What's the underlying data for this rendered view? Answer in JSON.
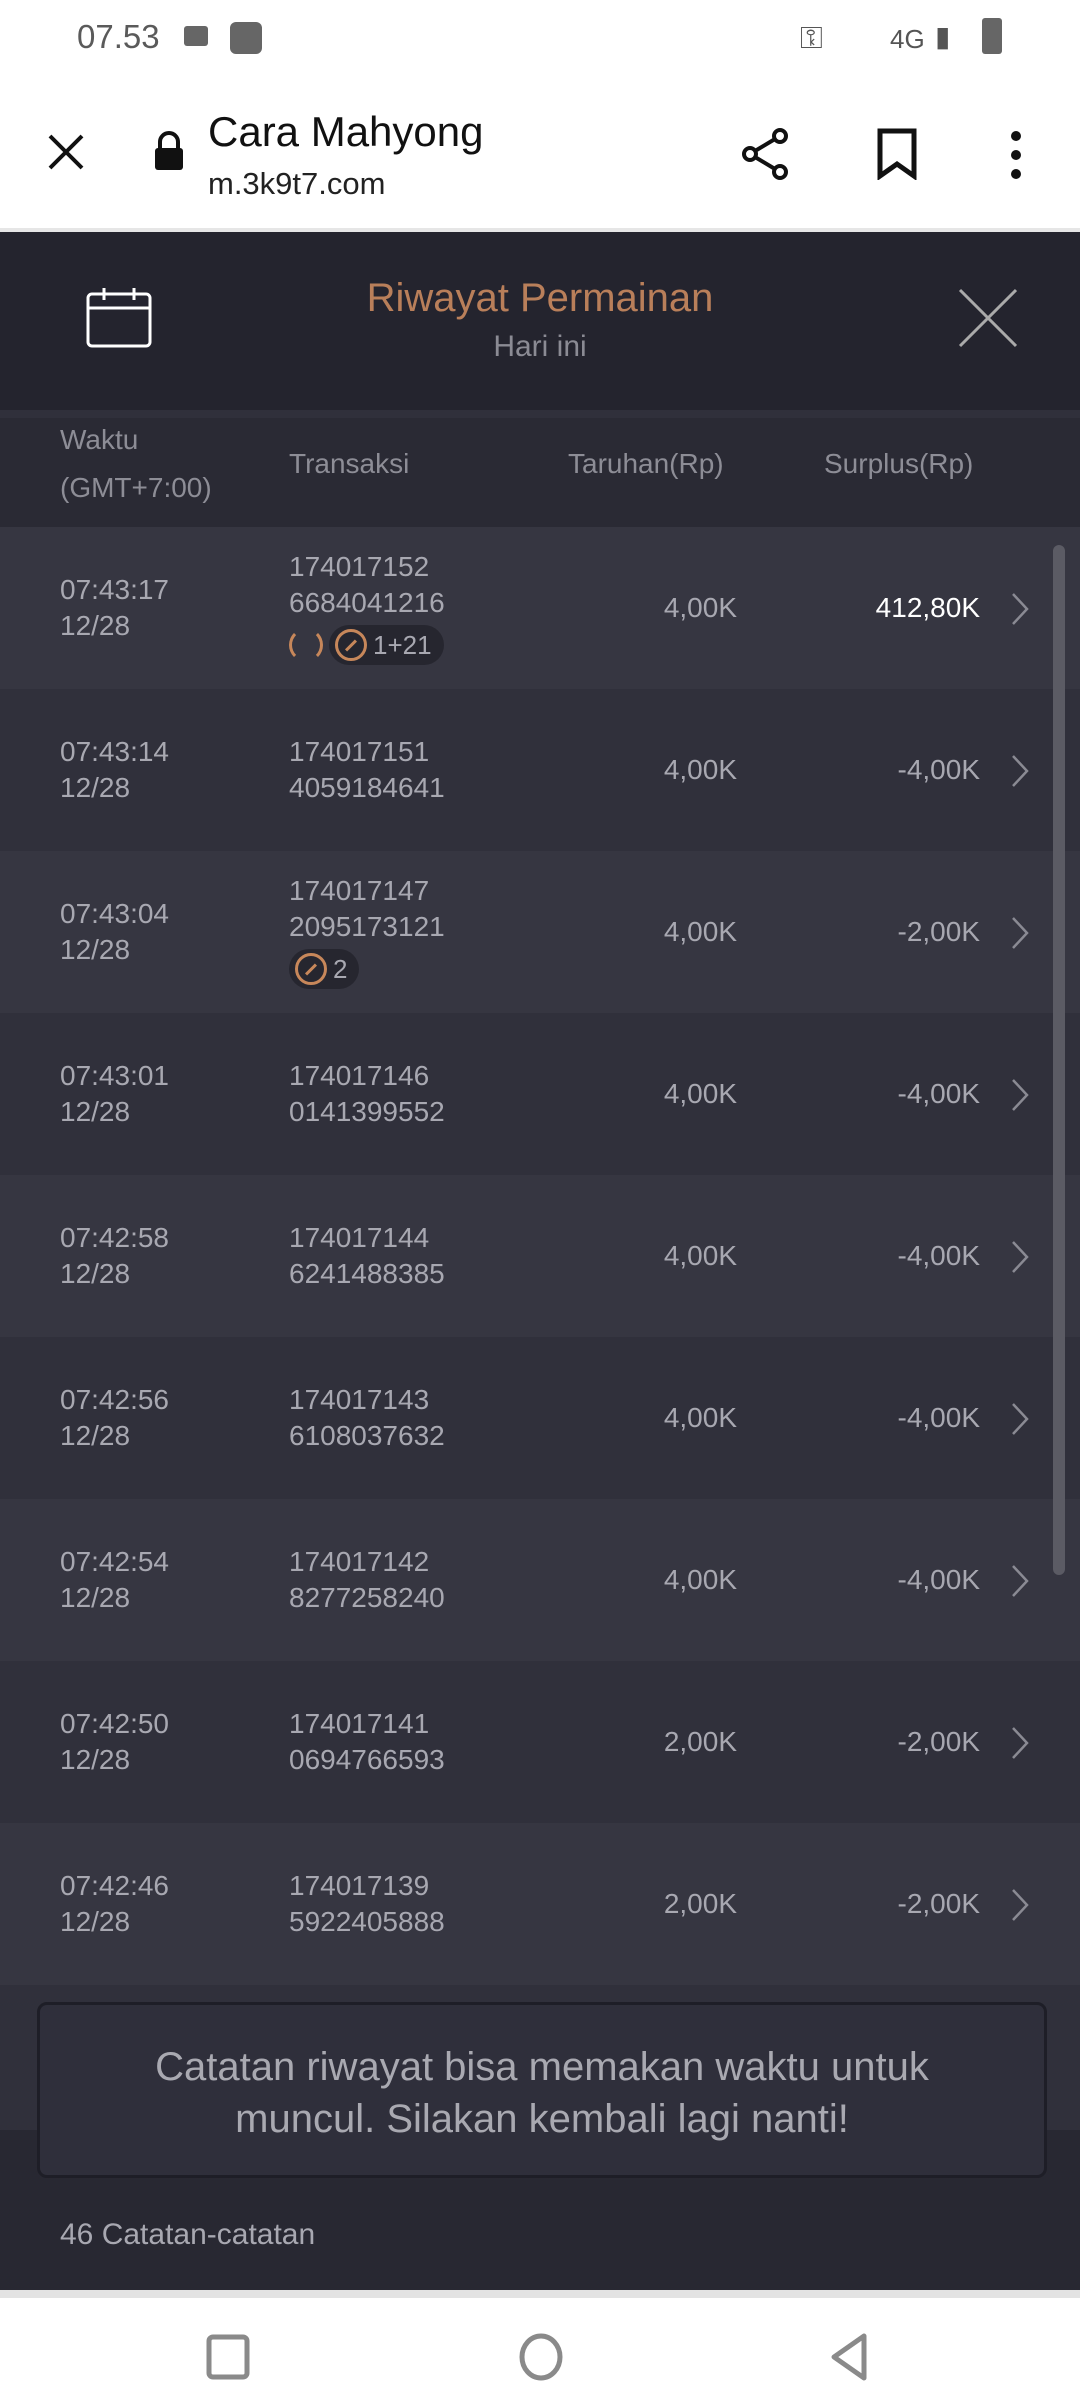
{
  "status_bar": {
    "time": "07.53",
    "network": "4G"
  },
  "browser": {
    "title": "Cara Mahyong",
    "url": "m.3k9t7.com"
  },
  "header": {
    "title": "Riwayat Permainan",
    "subtitle": "Hari ini",
    "accent": "#b97f5a"
  },
  "columns": {
    "time": "Waktu",
    "timezone": "(GMT+7:00)",
    "transaction": "Transaksi",
    "bet": "Taruhan(Rp)",
    "surplus": "Surplus(Rp)"
  },
  "rows": [
    {
      "time": "07:43:17",
      "date": "12/28",
      "tx1": "174017152",
      "tx2": "6684041216",
      "bet": "4,00K",
      "surplus": "412,80K",
      "badge": "1+21",
      "refresh": true,
      "win": true
    },
    {
      "time": "07:43:14",
      "date": "12/28",
      "tx1": "174017151",
      "tx2": "4059184641",
      "bet": "4,00K",
      "surplus": "-4,00K"
    },
    {
      "time": "07:43:04",
      "date": "12/28",
      "tx1": "174017147",
      "tx2": "2095173121",
      "bet": "4,00K",
      "surplus": "-2,00K",
      "badge": "2"
    },
    {
      "time": "07:43:01",
      "date": "12/28",
      "tx1": "174017146",
      "tx2": "0141399552",
      "bet": "4,00K",
      "surplus": "-4,00K"
    },
    {
      "time": "07:42:58",
      "date": "12/28",
      "tx1": "174017144",
      "tx2": "6241488385",
      "bet": "4,00K",
      "surplus": "-4,00K"
    },
    {
      "time": "07:42:56",
      "date": "12/28",
      "tx1": "174017143",
      "tx2": "6108037632",
      "bet": "4,00K",
      "surplus": "-4,00K"
    },
    {
      "time": "07:42:54",
      "date": "12/28",
      "tx1": "174017142",
      "tx2": "8277258240",
      "bet": "4,00K",
      "surplus": "-4,00K"
    },
    {
      "time": "07:42:50",
      "date": "12/28",
      "tx1": "174017141",
      "tx2": "0694766593",
      "bet": "2,00K",
      "surplus": "-2,00K"
    },
    {
      "time": "07:42:46",
      "date": "12/28",
      "tx1": "174017139",
      "tx2": "5922405888",
      "bet": "2,00K",
      "surplus": "-2,00K"
    }
  ],
  "footer": {
    "records": "46 Catatan-catatan"
  },
  "toast": {
    "line1": "Catatan riwayat bisa memakan waktu untuk",
    "line2": "muncul. Silakan kembali lagi nanti!"
  }
}
